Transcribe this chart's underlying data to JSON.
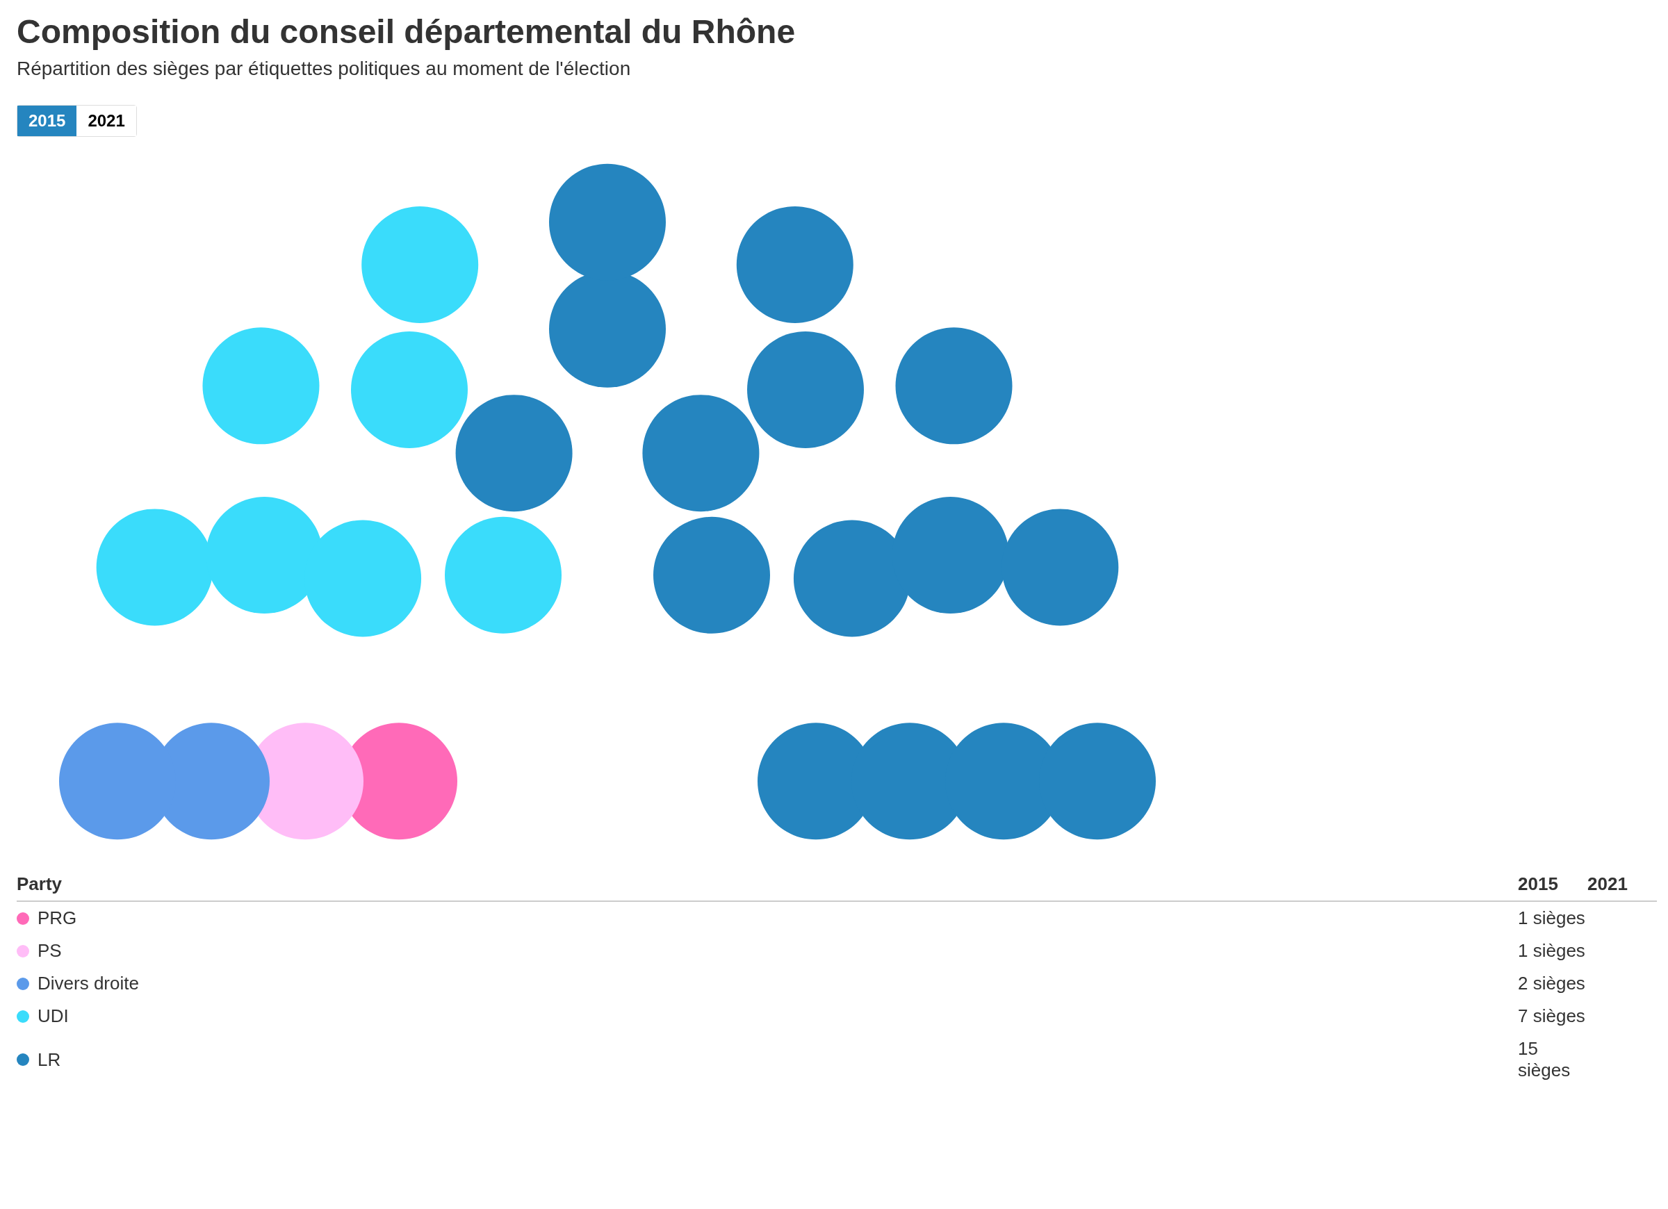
{
  "chart_data": {
    "type": "other",
    "title": "Composition du conseil départemental du Rhône",
    "subtitle": "Répartition des sièges par étiquettes politiques au moment de l'élection",
    "legend_title": "Party",
    "categories": [
      "PRG",
      "PS",
      "Divers droite",
      "UDI",
      "LR"
    ],
    "colors": [
      "#ff6ab8",
      "#ffbdf7",
      "#5b9aea",
      "#3adcfb",
      "#2585bf"
    ],
    "series": [
      {
        "name": "2015",
        "values": [
          1,
          1,
          2,
          7,
          15
        ],
        "value_labels": [
          "1 sièges",
          "1 sièges",
          "2 sièges",
          "7 sièges",
          "15 sièges"
        ]
      },
      {
        "name": "2021",
        "values": [
          null,
          null,
          null,
          null,
          null
        ]
      }
    ]
  }
}
